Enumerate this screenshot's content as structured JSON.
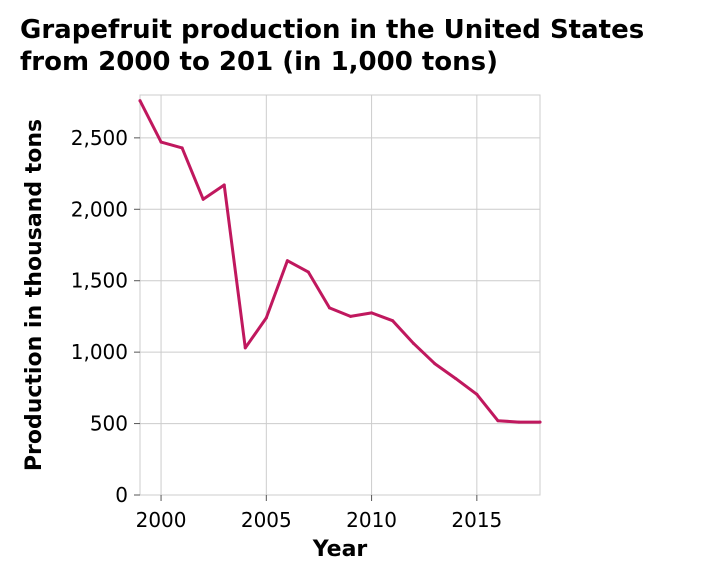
{
  "chart_data": {
    "type": "line",
    "title": "Grapefruit production in the United States from 2000 to 201 (in 1,000 tons)",
    "xlabel": "Year",
    "ylabel": "Production in thousand tons",
    "xlim": [
      1999,
      2018
    ],
    "ylim": [
      0,
      2800
    ],
    "xticks": [
      2000,
      2005,
      2010,
      2015
    ],
    "xtick_labels": [
      "2000",
      "2005",
      "2010",
      "2015"
    ],
    "yticks": [
      0,
      500,
      1000,
      1500,
      2000,
      2500
    ],
    "ytick_labels": [
      "0",
      "500",
      "1,000",
      "1,500",
      "2,000",
      "2,500"
    ],
    "grid": true,
    "series": [
      {
        "name": "Production",
        "color": "#c0185e",
        "x": [
          1999,
          2000,
          2001,
          2002,
          2003,
          2004,
          2005,
          2006,
          2007,
          2008,
          2009,
          2010,
          2011,
          2012,
          2013,
          2014,
          2015,
          2016,
          2017,
          2018
        ],
        "y": [
          2760,
          2470,
          2430,
          2070,
          2170,
          1030,
          1240,
          1640,
          1560,
          1310,
          1250,
          1275,
          1220,
          1060,
          920,
          815,
          705,
          520,
          510,
          510
        ]
      }
    ]
  }
}
